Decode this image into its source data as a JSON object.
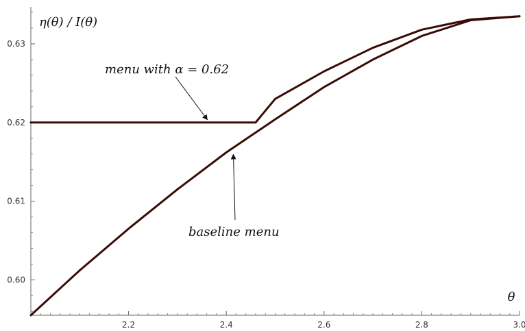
{
  "chart_data": {
    "type": "line",
    "title": "",
    "xlabel": "θ",
    "ylabel": "η(θ) / I(θ)",
    "xlim": [
      2.0,
      3.0
    ],
    "ylim": [
      0.5955,
      0.6347
    ],
    "x_ticks": [
      2.2,
      2.4,
      2.6,
      2.8,
      3.0
    ],
    "x_tick_labels": [
      "2.2",
      "2.4",
      "2.6",
      "2.8",
      "3.0"
    ],
    "y_ticks": [
      0.6,
      0.61,
      0.62,
      0.63
    ],
    "y_tick_labels": [
      "0.60",
      "0.61",
      "0.62",
      "0.63"
    ],
    "grid": false,
    "legend": "none",
    "series": [
      {
        "label_text": "baseline menu",
        "color": "#3a0b06",
        "x": [
          2.0,
          2.1,
          2.2,
          2.3,
          2.4,
          2.5,
          2.6,
          2.7,
          2.8,
          2.9,
          3.0
        ],
        "y": [
          0.5955,
          0.6012,
          0.6065,
          0.6115,
          0.6162,
          0.6204,
          0.6245,
          0.628,
          0.631,
          0.633,
          0.6335
        ]
      },
      {
        "label_text": "menu with α = 0.62",
        "color": "#3a0b06",
        "x": [
          2.0,
          2.1,
          2.2,
          2.3,
          2.4,
          2.46,
          2.5,
          2.6,
          2.7,
          2.8,
          2.9,
          3.0
        ],
        "y": [
          0.62,
          0.62,
          0.62,
          0.62,
          0.62,
          0.62,
          0.623,
          0.6265,
          0.6295,
          0.6318,
          0.6331,
          0.6335
        ]
      }
    ],
    "annotations": [
      {
        "text": "menu with α = 0.62",
        "target_series": 1,
        "arrow_to": [
          2.35,
          0.62
        ]
      },
      {
        "text": "baseline menu",
        "target_series": 0,
        "arrow_to": [
          2.42,
          0.617
        ]
      }
    ]
  }
}
